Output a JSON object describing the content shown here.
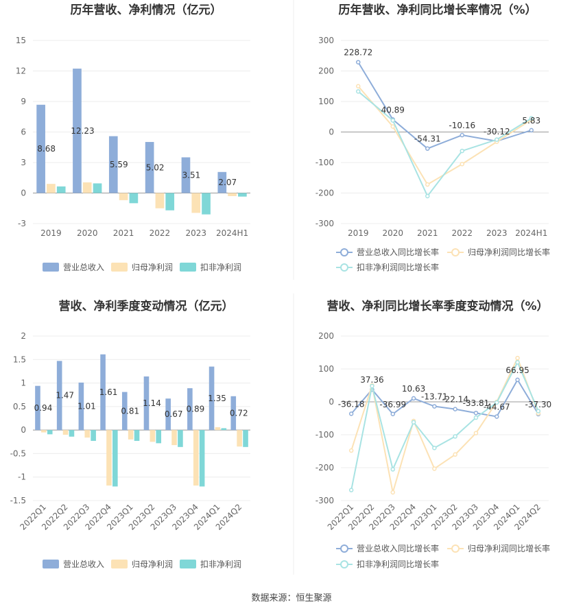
{
  "source": "数据来源：恒生聚源",
  "colors": {
    "revenue": "#8eadd9",
    "net_profit": "#fce2b5",
    "deducted_profit": "#7fd7d7",
    "rev_growth": "#8eadd9",
    "np_growth": "#fce2b5",
    "dp_growth": "#a8e3e3"
  },
  "chart_data": [
    {
      "type": "bar",
      "title": "历年营收、净利情况（亿元）",
      "categories": [
        "2019",
        "2020",
        "2021",
        "2022",
        "2023",
        "2024H1"
      ],
      "ylim": [
        -3,
        15
      ],
      "yticks": [
        "-3",
        "0",
        "3",
        "6",
        "9",
        "12",
        "15"
      ],
      "series": [
        {
          "name": "营业总收入",
          "values": [
            8.68,
            12.23,
            5.59,
            5.02,
            3.51,
            2.07
          ]
        },
        {
          "name": "归母净利润",
          "values": [
            0.9,
            1.05,
            -0.7,
            -1.5,
            -1.95,
            -0.3
          ]
        },
        {
          "name": "扣非净利润",
          "values": [
            0.65,
            0.95,
            -1.0,
            -1.7,
            -2.1,
            -0.35
          ]
        }
      ],
      "data_labels": [
        "8.68",
        "12.23",
        "5.59",
        "5.02",
        "3.51",
        "2.07"
      ],
      "legend": "bottom"
    },
    {
      "type": "line",
      "title": "历年营收、净利同比增长率情况（%）",
      "categories": [
        "2019",
        "2020",
        "2021",
        "2022",
        "2023",
        "2024H1"
      ],
      "ylim": [
        -300,
        300
      ],
      "yticks": [
        "-300",
        "-200",
        "-100",
        "0",
        "100",
        "200",
        "300"
      ],
      "series": [
        {
          "name": "营业总收入同比增长率",
          "values": [
            228.72,
            40.89,
            -54.31,
            -10.16,
            -30.12,
            5.83
          ]
        },
        {
          "name": "归母净利润同比增长率",
          "values": [
            150,
            18,
            -172,
            -105,
            -32,
            40
          ]
        },
        {
          "name": "扣非净利润同比增长率",
          "values": [
            133,
            38,
            -210,
            -62,
            -25,
            45
          ]
        }
      ],
      "data_labels": [
        "228.72",
        "40.89",
        "-54.31",
        "-10.16",
        "-30.12",
        "5.83"
      ],
      "legend": "bottom"
    },
    {
      "type": "bar",
      "title": "营收、净利季度变动情况（亿元）",
      "categories": [
        "2022Q1",
        "2022Q2",
        "2022Q3",
        "2022Q4",
        "2023Q1",
        "2023Q2",
        "2023Q3",
        "2023Q4",
        "2024Q1",
        "2024Q2"
      ],
      "ylim": [
        -1.5,
        2
      ],
      "yticks": [
        "-1.5",
        "-1",
        "-0.5",
        "0",
        "0.5",
        "1",
        "1.5",
        "2"
      ],
      "series": [
        {
          "name": "营业总收入",
          "values": [
            0.94,
            1.47,
            1.01,
            1.61,
            0.81,
            1.14,
            0.67,
            0.89,
            1.35,
            0.72
          ]
        },
        {
          "name": "归母净利润",
          "values": [
            -0.05,
            -0.1,
            -0.16,
            -1.18,
            -0.2,
            -0.25,
            -0.32,
            -1.18,
            0.06,
            -0.35
          ]
        },
        {
          "name": "扣非净利润",
          "values": [
            -0.09,
            -0.14,
            -0.23,
            -1.2,
            -0.23,
            -0.28,
            -0.36,
            -1.2,
            0.04,
            -0.36
          ]
        }
      ],
      "data_labels": [
        "0.94",
        "1.47",
        "1.01",
        "1.61",
        "0.81",
        "1.14",
        "0.67",
        "0.89",
        "1.35",
        "0.72"
      ],
      "legend": "bottom"
    },
    {
      "type": "line",
      "title": "营收、净利同比增长率季度变动情况（%）",
      "categories": [
        "2022Q1",
        "2022Q2",
        "2022Q3",
        "2022Q4",
        "2023Q1",
        "2023Q2",
        "2023Q3",
        "2023Q4",
        "2024Q1",
        "2024Q2"
      ],
      "ylim": [
        -300,
        200
      ],
      "yticks": [
        "-300",
        "-200",
        "-100",
        "0",
        "100",
        "200"
      ],
      "series": [
        {
          "name": "营业总收入同比增长率",
          "values": [
            -36.18,
            37.36,
            -36.99,
            10.63,
            -13.71,
            -22.14,
            -33.81,
            -44.67,
            66.95,
            -37.3
          ]
        },
        {
          "name": "归母净利润同比增长率",
          "values": [
            -148,
            50,
            -275,
            -58,
            -203,
            -160,
            -95,
            0,
            133,
            -35
          ]
        },
        {
          "name": "扣非净利润同比增长率",
          "values": [
            -268,
            48,
            -205,
            -62,
            -140,
            -105,
            -48,
            -2,
            120,
            -28
          ]
        }
      ],
      "data_labels": [
        "-36.18",
        "37.36",
        "-36.99",
        "10.63",
        "-13.71",
        "-22.14",
        "-33.81",
        "-44.67",
        "66.95",
        "-37.30"
      ],
      "legend": "bottom"
    }
  ]
}
